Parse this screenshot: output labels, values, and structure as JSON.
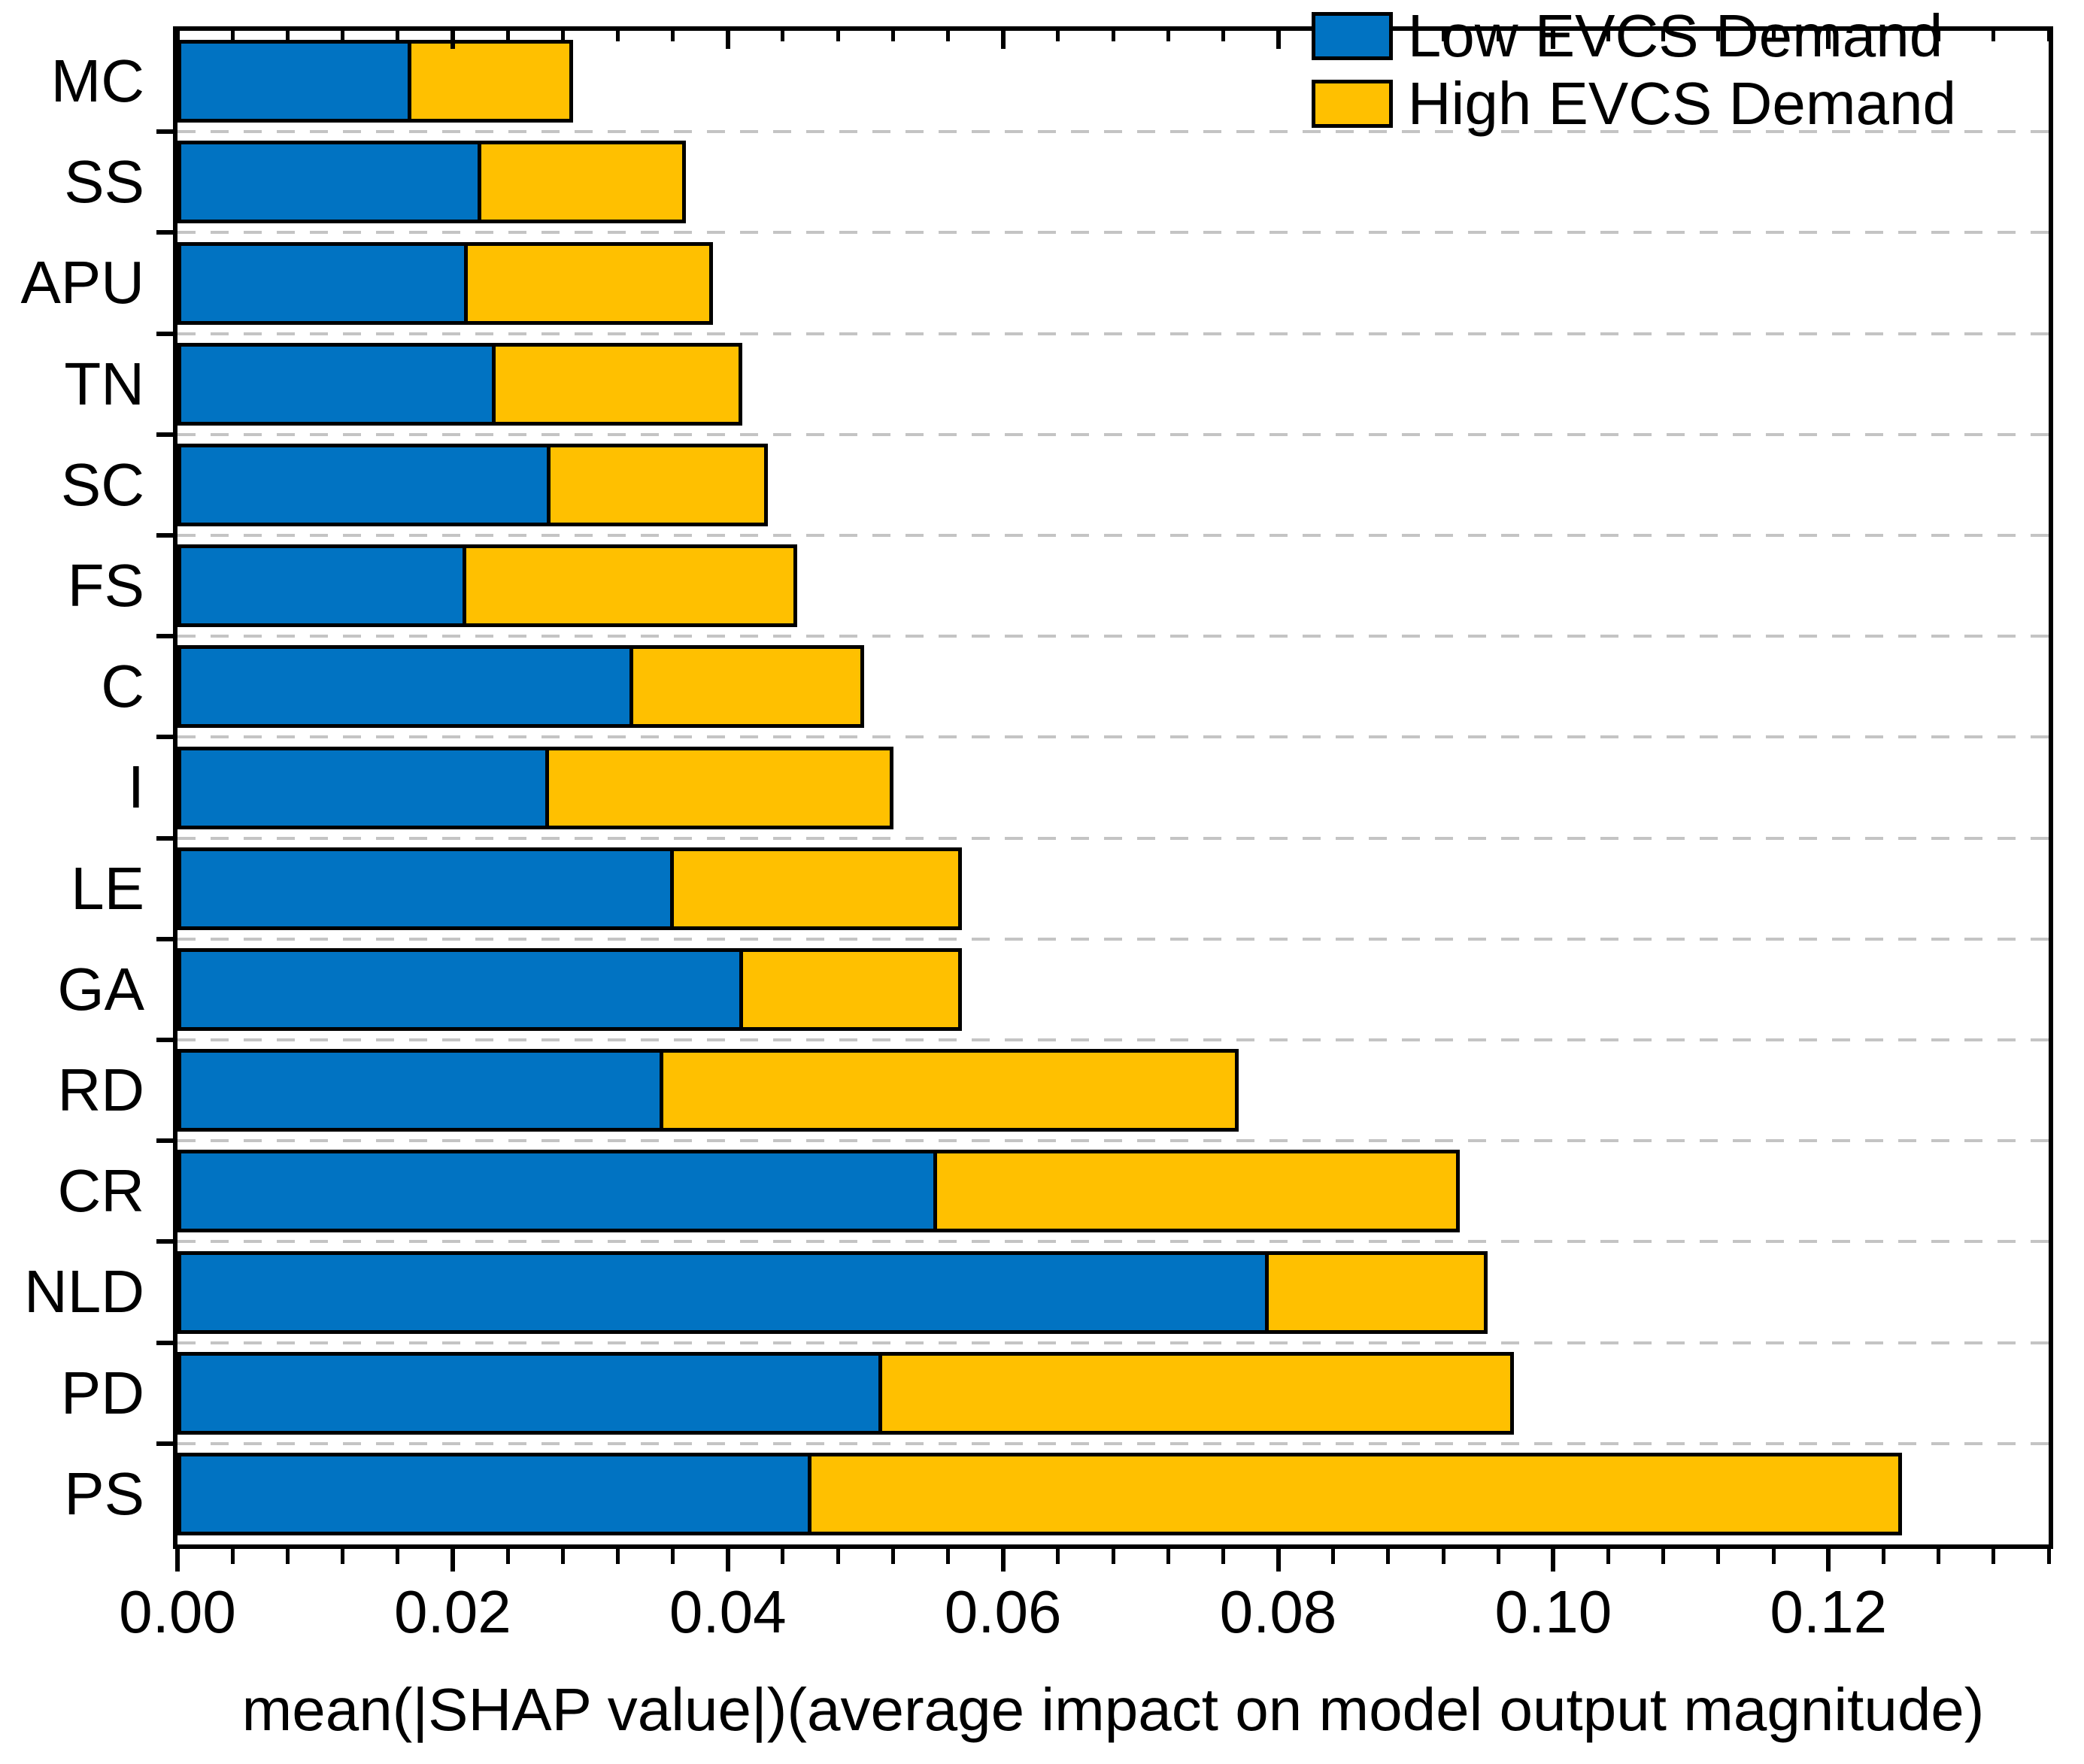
{
  "figure": {
    "background_color": "#ffffff",
    "bar_border_color": "#000000",
    "gridline_color": "#c4c4c4"
  },
  "axis": {
    "xlabel": "mean(|SHAP value|)(average impact on model output magnitude)",
    "x_major_ticks": [
      {
        "value": 0.0,
        "label": "0.00"
      },
      {
        "value": 0.02,
        "label": "0.02"
      },
      {
        "value": 0.04,
        "label": "0.04"
      },
      {
        "value": 0.06,
        "label": "0.06"
      },
      {
        "value": 0.08,
        "label": "0.08"
      },
      {
        "value": 0.1,
        "label": "0.10"
      },
      {
        "value": 0.12,
        "label": "0.12"
      }
    ],
    "x_minor_step": 0.004,
    "x_max": 0.136
  },
  "legend": [
    {
      "label": "Low EVCS Demand",
      "color": "#0173C2"
    },
    {
      "label": "High EVCS Demand",
      "color": "#FFC000"
    }
  ],
  "chart_data": {
    "type": "bar",
    "orientation": "horizontal",
    "stacked": true,
    "title": "",
    "xlabel": "mean(|SHAP value|)(average impact on model output magnitude)",
    "ylabel": "",
    "xlim": [
      0,
      0.136
    ],
    "grid": "horizontal-dashed",
    "legend_position": "top-right",
    "categories": [
      "MC",
      "SS",
      "APU",
      "TN",
      "SC",
      "FS",
      "C",
      "I",
      "LE",
      "GA",
      "RD",
      "CR",
      "NLD",
      "PD",
      "PS"
    ],
    "series": [
      {
        "name": "Low EVCS Demand",
        "color": "#0173C2",
        "values": [
          0.017,
          0.0221,
          0.0211,
          0.0231,
          0.0271,
          0.021,
          0.0331,
          0.027,
          0.0361,
          0.0411,
          0.0353,
          0.0552,
          0.0793,
          0.0512,
          0.0461
        ]
      },
      {
        "name": "High EVCS Demand",
        "color": "#FFC000",
        "values": [
          0.012,
          0.0151,
          0.0181,
          0.0182,
          0.0161,
          0.0243,
          0.0171,
          0.0253,
          0.0212,
          0.0162,
          0.0421,
          0.0383,
          0.0162,
          0.0462,
          0.0795
        ]
      }
    ],
    "totals": [
      0.029,
      0.0372,
      0.0392,
      0.0413,
      0.0432,
      0.0453,
      0.0502,
      0.0523,
      0.0573,
      0.0573,
      0.0774,
      0.0935,
      0.0955,
      0.0974,
      0.1256
    ]
  }
}
